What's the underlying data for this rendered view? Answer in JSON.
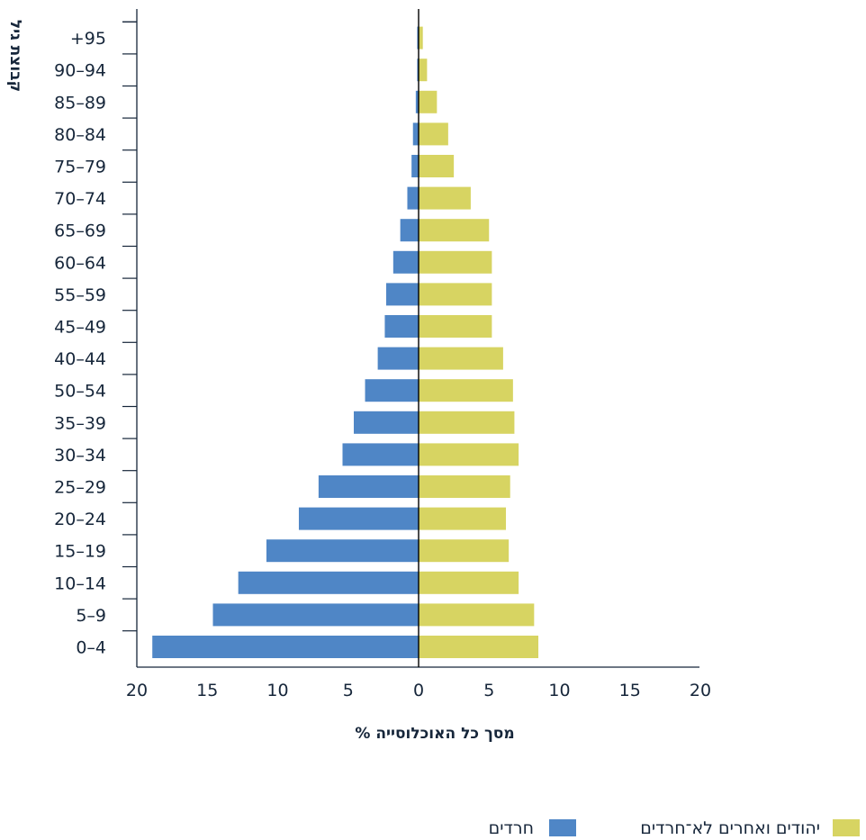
{
  "chart_data": {
    "type": "bar",
    "orientation": "horizontal",
    "layout": "population-pyramid",
    "categories": [
      "0–4",
      "5–9",
      "10–14",
      "15–19",
      "20–24",
      "25–29",
      "30–34",
      "35–39",
      "50–54",
      "40–44",
      "45–49",
      "55–59",
      "60–64",
      "65–69",
      "70–74",
      "75–79",
      "80–84",
      "85–89",
      "90–94",
      "+95"
    ],
    "series": [
      {
        "name": "חרדים",
        "side": "left",
        "color": "#4f86c6",
        "values": [
          18.9,
          14.6,
          12.8,
          10.8,
          8.5,
          7.1,
          5.4,
          4.6,
          3.8,
          2.9,
          2.4,
          2.3,
          1.8,
          1.3,
          0.8,
          0.5,
          0.4,
          0.2,
          0.1,
          0.1
        ]
      },
      {
        "name": "יהודים ואחרים לא־חרדים",
        "side": "right",
        "color": "#d7d462",
        "values": [
          8.5,
          8.2,
          7.1,
          6.4,
          6.2,
          6.5,
          7.1,
          6.8,
          6.7,
          6.0,
          5.2,
          5.2,
          5.2,
          5.0,
          3.7,
          2.5,
          2.1,
          1.3,
          0.6,
          0.3
        ]
      }
    ],
    "xlim": [
      -20,
      20
    ],
    "xticks": [
      -20,
      -15,
      -10,
      -5,
      0,
      5,
      10,
      15,
      20
    ],
    "xtick_labels": [
      "20",
      "15",
      "10",
      "5",
      "0",
      "5",
      "10",
      "15",
      "20"
    ],
    "xlabel": "% מסך כל האוכלוסייה",
    "ylabel": "קבוצת גיל",
    "legend_position": "bottom-right",
    "grid": false
  }
}
